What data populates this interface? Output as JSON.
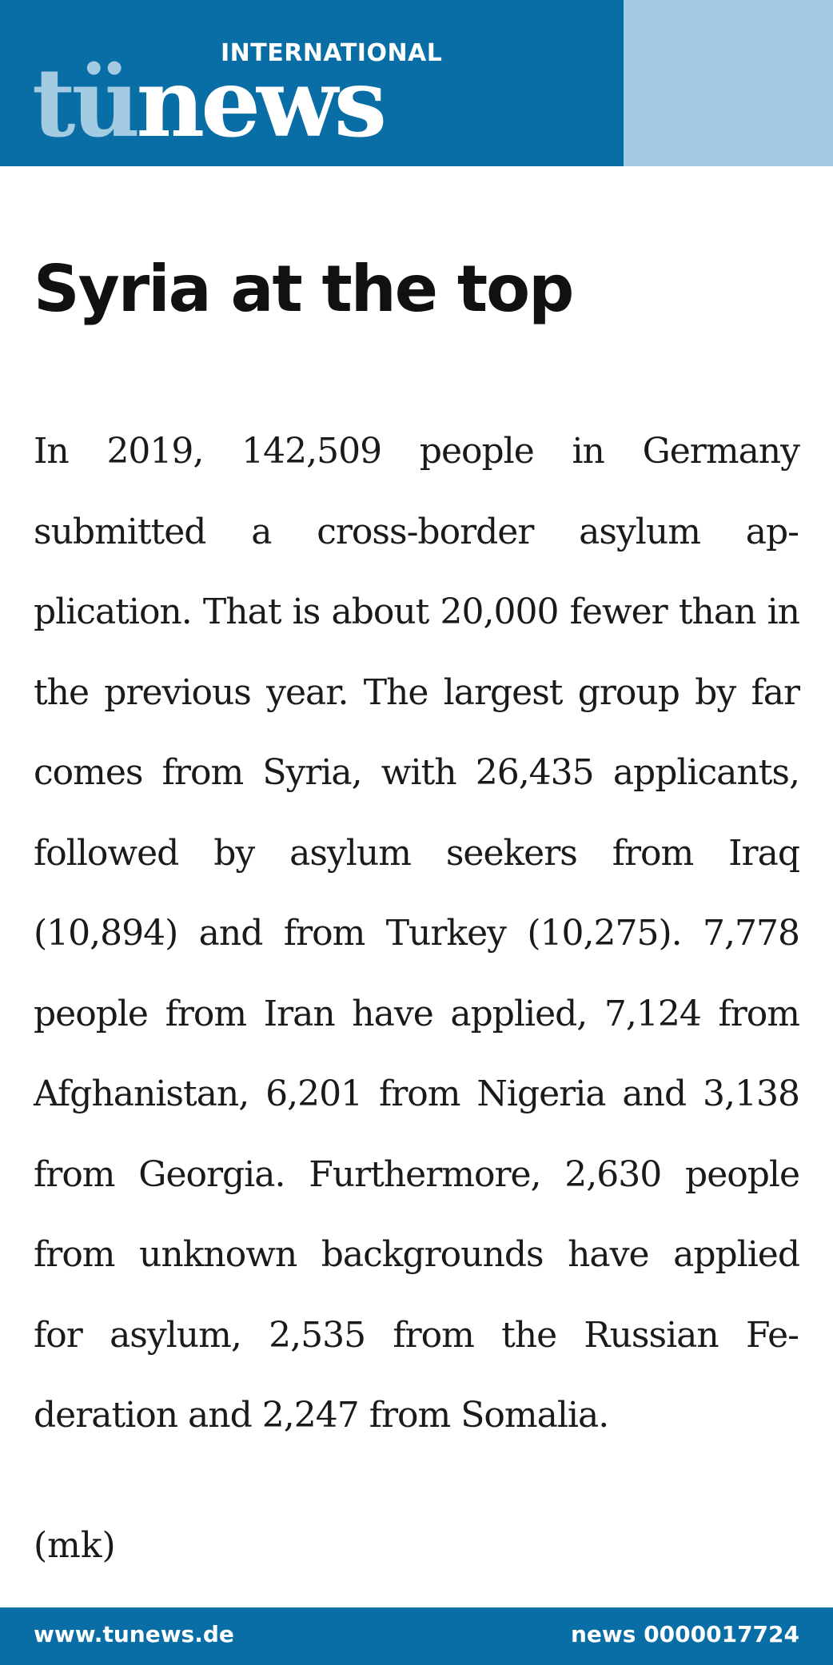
{
  "header": {
    "kicker": "INTERNATIONAL",
    "logo_part1": "tü",
    "logo_part2": "news",
    "colors": {
      "primary": "#0a6ea6",
      "accent": "#a3cbe2"
    }
  },
  "article": {
    "title": "Syria at the top",
    "body": "In 2019, 142,509 people in Germany submitted a cross-border asylum ap­plication. That is about 20,000 fewer than in the previous year. The largest group by far comes from Syria, with 26,435 applicants, followed by asylum seekers from Iraq (10,894) and from Turkey (10,275). 7,778 people from Iran have applied, 7,124 from Afghanistan, 6,201 from Nigeria and 3,138 from Ge­orgia. Furthermore, 2,630 people from unknown backgrounds have applied for asylum, 2,535 from the Russian Fe­deration and 2,247 from Somalia.",
    "byline": "(mk)"
  },
  "footer": {
    "website": "www.tunews.de",
    "news_id": "news 0000017724"
  }
}
